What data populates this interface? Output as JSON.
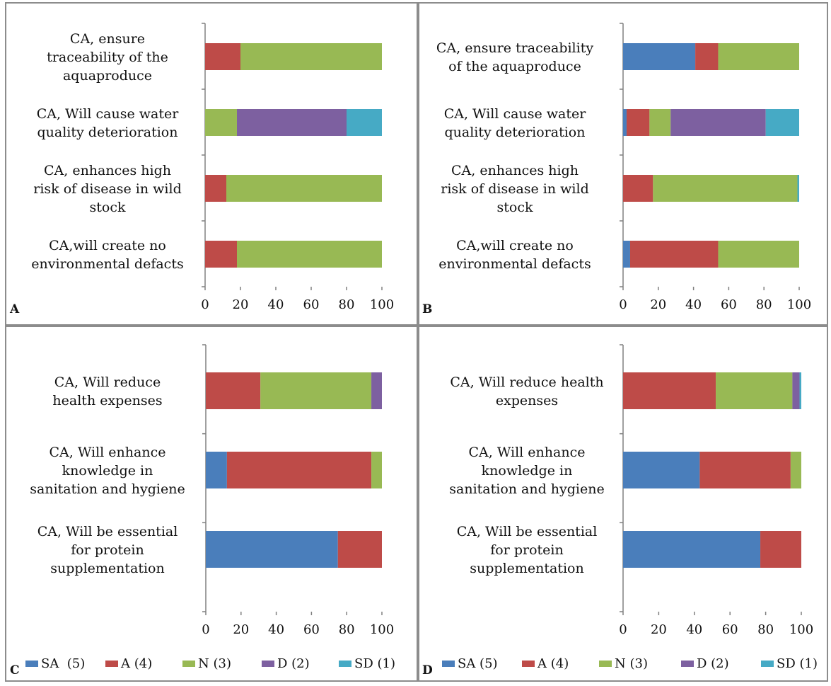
{
  "chart_data": [
    {
      "type": "bar",
      "orientation": "horizontal",
      "stacked": true,
      "panel": "A",
      "categories": [
        "CA, ensure traceability of the aquaproduce",
        "CA, Will cause water quality deterioration",
        "CA, enhances high risk of disease in wild stock",
        "CA,will create no environmental defacts"
      ],
      "category_lines": [
        [
          "CA, ensure",
          "traceability of the",
          "aquaproduce"
        ],
        [
          "CA, Will cause water",
          "quality deterioration"
        ],
        [
          "CA, enhances high",
          "risk of disease in wild",
          "stock"
        ],
        [
          "CA,will create no",
          "environmental defacts"
        ]
      ],
      "series": [
        {
          "name": "SA  (5)",
          "values": [
            0,
            0,
            0,
            0
          ]
        },
        {
          "name": "A (4)",
          "values": [
            20,
            0,
            12,
            18
          ]
        },
        {
          "name": "N (3)",
          "values": [
            80,
            18,
            88,
            82
          ]
        },
        {
          "name": "D (2)",
          "values": [
            0,
            62,
            0,
            0
          ]
        },
        {
          "name": "SD (1)",
          "values": [
            0,
            20,
            0,
            0
          ]
        }
      ],
      "xlim": [
        0,
        100
      ],
      "xticks": [
        "0",
        "20",
        "40",
        "60",
        "80",
        "100"
      ]
    },
    {
      "type": "bar",
      "orientation": "horizontal",
      "stacked": true,
      "panel": "B",
      "categories": [
        "CA, ensure traceability of the aquaproduce",
        "CA, Will cause water quality deterioration",
        "CA, enhances high risk of disease in wild stock",
        "CA,will create no environmental defacts"
      ],
      "category_lines": [
        [
          "CA, ensure traceability",
          "of the aquaproduce"
        ],
        [
          "CA, Will cause water",
          "quality deterioration"
        ],
        [
          "CA, enhances high",
          "risk of disease in wild",
          "stock"
        ],
        [
          "CA,will create no",
          "environmental defacts"
        ]
      ],
      "series": [
        {
          "name": "SA (5)",
          "values": [
            41,
            2,
            0,
            4
          ]
        },
        {
          "name": "A (4)",
          "values": [
            13,
            13,
            17,
            50
          ]
        },
        {
          "name": "N (3)",
          "values": [
            46,
            12,
            82,
            46
          ]
        },
        {
          "name": "D (2)",
          "values": [
            0,
            54,
            0,
            0
          ]
        },
        {
          "name": "SD (1)",
          "values": [
            0,
            19,
            1,
            0
          ]
        }
      ],
      "xlim": [
        0,
        100
      ],
      "xticks": [
        "0",
        "20",
        "40",
        "60",
        "80",
        "100"
      ]
    },
    {
      "type": "bar",
      "orientation": "horizontal",
      "stacked": true,
      "panel": "C",
      "categories": [
        "CA, Will reduce health expenses",
        "CA, Will enhance knowledge in sanitation and hygiene",
        "CA, Will be essential for protein supplementation"
      ],
      "category_lines": [
        [
          "CA, Will reduce",
          "health expenses"
        ],
        [
          "CA, Will enhance",
          "knowledge in",
          "sanitation and hygiene"
        ],
        [
          "CA, Will be essential",
          "for protein",
          "supplementation"
        ]
      ],
      "series": [
        {
          "name": "SA  (5)",
          "values": [
            0,
            12,
            75
          ]
        },
        {
          "name": "A (4)",
          "values": [
            31,
            82,
            25
          ]
        },
        {
          "name": "N (3)",
          "values": [
            63,
            6,
            0
          ]
        },
        {
          "name": "D (2)",
          "values": [
            6,
            0,
            0
          ]
        },
        {
          "name": "SD (1)",
          "values": [
            0,
            0,
            0
          ]
        }
      ],
      "xlim": [
        0,
        100
      ],
      "xticks": [
        "0",
        "20",
        "40",
        "60",
        "80",
        "100"
      ]
    },
    {
      "type": "bar",
      "orientation": "horizontal",
      "stacked": true,
      "panel": "D",
      "categories": [
        "CA, Will reduce health expenses",
        "CA, Will enhance knowledge in sanitation and hygiene",
        "CA, Will be essential for protein supplementation"
      ],
      "category_lines": [
        [
          "CA, Will reduce health",
          "expenses"
        ],
        [
          "CA, Will enhance",
          "knowledge in",
          "sanitation and hygiene"
        ],
        [
          "CA, Will be essential",
          "for protein",
          "supplementation"
        ]
      ],
      "series": [
        {
          "name": "SA (5)",
          "values": [
            0,
            43,
            77
          ]
        },
        {
          "name": "A (4)",
          "values": [
            52,
            51,
            23
          ]
        },
        {
          "name": "N (3)",
          "values": [
            43,
            6,
            0
          ]
        },
        {
          "name": "D (2)",
          "values": [
            4,
            0,
            0
          ]
        },
        {
          "name": "SD (1)",
          "values": [
            1,
            0,
            0
          ]
        }
      ],
      "xlim": [
        0,
        100
      ],
      "xticks": [
        "0",
        "20",
        "40",
        "60",
        "80",
        "100"
      ]
    }
  ],
  "colors": {
    "SA": "#4a7ebb",
    "A": "#be4b48",
    "N": "#98b954",
    "D": "#7d60a0",
    "SD": "#46aac5"
  },
  "legend": {
    "placement": "bottom",
    "panels": [
      "C",
      "D"
    ]
  }
}
